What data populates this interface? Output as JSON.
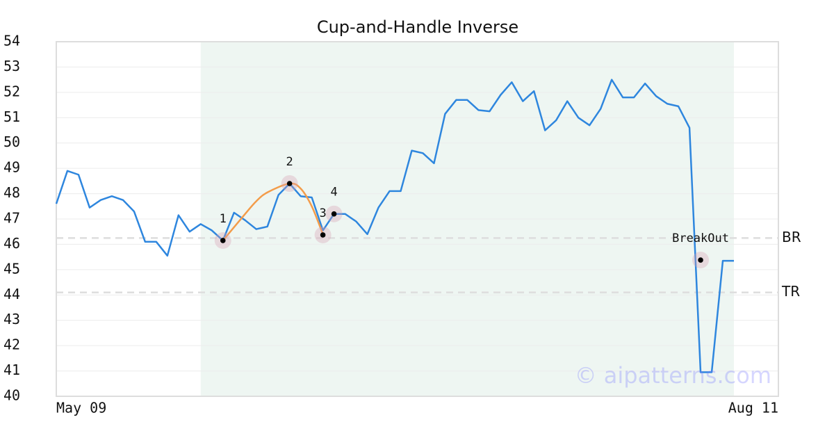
{
  "chart_data": {
    "type": "line",
    "title": "Cup-and-Handle Inverse",
    "categories": [
      "May 09",
      null,
      null,
      null,
      null,
      null,
      null,
      null,
      null,
      null,
      null,
      null,
      null,
      null,
      null,
      null,
      null,
      null,
      null,
      null,
      null,
      null,
      null,
      null,
      null,
      null,
      null,
      null,
      null,
      null,
      null,
      null,
      null,
      null,
      null,
      null,
      null,
      null,
      null,
      null,
      null,
      null,
      null,
      null,
      null,
      null,
      null,
      null,
      null,
      null,
      null,
      null,
      null,
      null,
      null,
      null,
      null,
      null,
      null,
      null,
      null,
      "Aug 11"
    ],
    "series": [
      {
        "color": "#2e86de",
        "values": [
          47.6,
          48.9,
          48.75,
          47.45,
          47.75,
          47.9,
          47.75,
          47.3,
          46.1,
          46.1,
          45.55,
          47.15,
          46.5,
          46.8,
          46.55,
          46.15,
          47.25,
          46.95,
          46.6,
          46.7,
          47.95,
          48.4,
          47.9,
          47.85,
          46.55,
          47.2,
          47.2,
          46.9,
          46.4,
          47.45,
          48.1,
          48.1,
          49.7,
          49.6,
          49.2,
          51.15,
          51.7,
          51.7,
          51.3,
          51.25,
          51.9,
          52.4,
          51.65,
          52.05,
          50.5,
          50.9,
          51.65,
          51.0,
          50.7,
          51.35,
          52.5,
          51.8,
          51.8,
          52.35,
          51.85,
          51.55,
          51.45,
          50.6,
          40.95,
          40.95,
          45.35,
          45.35
        ]
      }
    ],
    "fit_curve": {
      "color": "#f39c4a",
      "x": [
        15,
        17,
        18,
        19,
        21,
        22,
        23,
        24
      ],
      "values": [
        46.15,
        47.2,
        47.7,
        48.05,
        48.4,
        48.2,
        47.5,
        46.4
      ]
    },
    "shade": {
      "from": 13,
      "to": 61,
      "color": "#eef6f2"
    },
    "hlines": [
      {
        "label": "BR",
        "value": 46.25
      },
      {
        "label": "TR",
        "value": 44.1
      }
    ],
    "annotations": [
      {
        "label": "1",
        "x": 15,
        "y": 46.15
      },
      {
        "label": "2",
        "x": 21,
        "y": 48.4
      },
      {
        "label": "3",
        "x": 24,
        "y": 46.37
      },
      {
        "label": "4",
        "x": 25,
        "y": 47.2
      },
      {
        "label": "BreakOut",
        "x": 58,
        "y": 45.38
      }
    ],
    "watermark": "© aipatterns.com",
    "ylim": [
      40,
      54
    ],
    "yticks": [
      40,
      41,
      42,
      43,
      44,
      45,
      46,
      47,
      48,
      49,
      50,
      51,
      52,
      53,
      54
    ],
    "grid": true
  }
}
